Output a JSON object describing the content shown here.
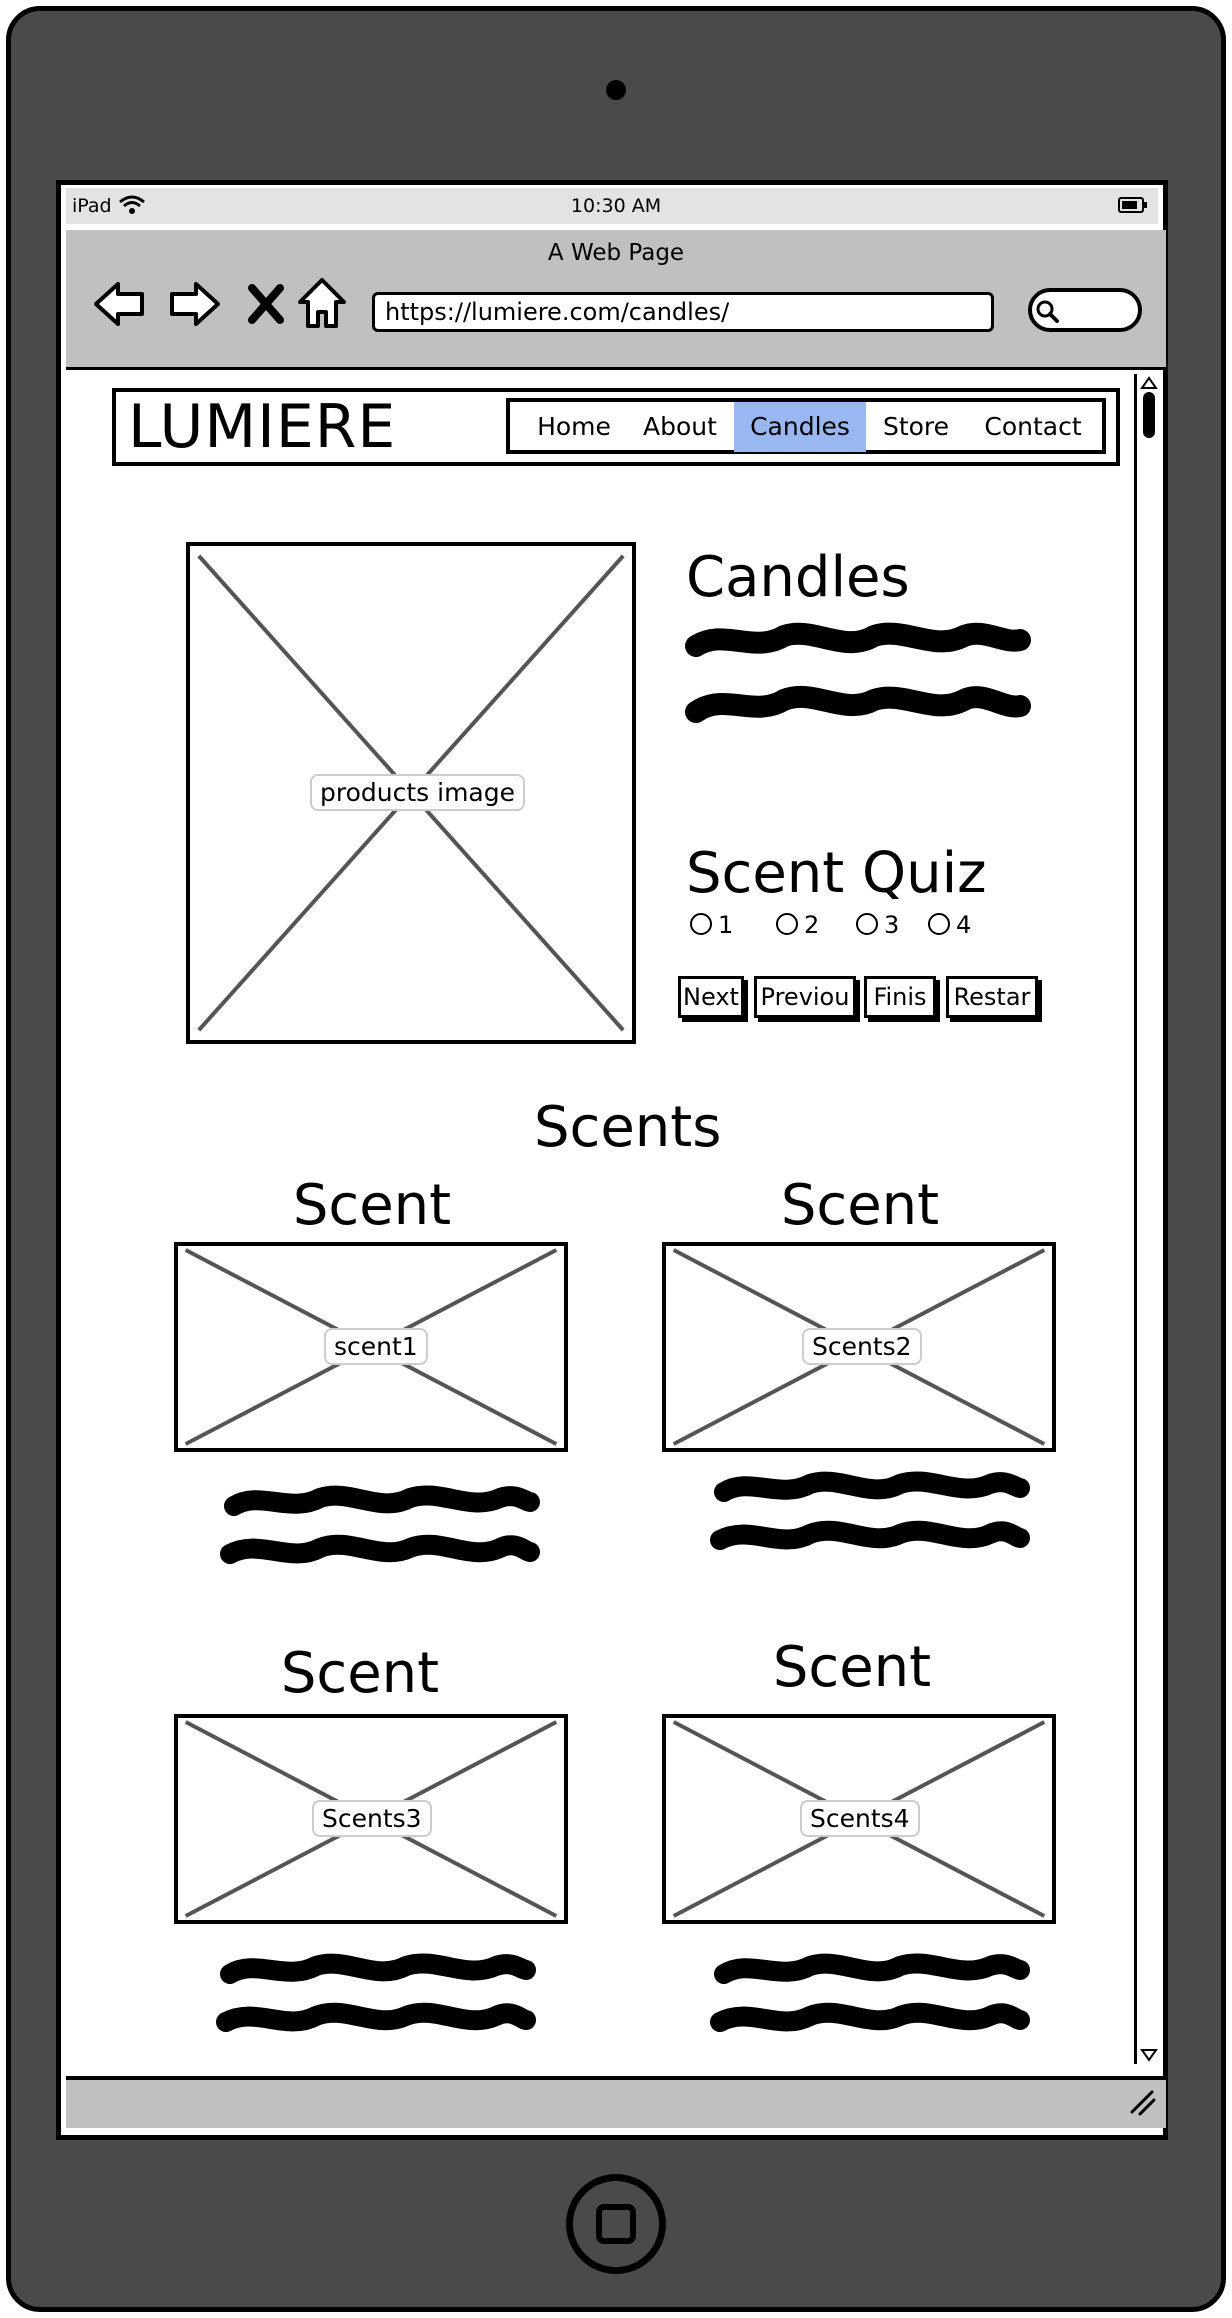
{
  "device": {
    "carrier": "iPad",
    "time": "10:30 AM"
  },
  "browser": {
    "page_title": "A Web Page",
    "url": "https://lumiere.com/candles/"
  },
  "site": {
    "logo": "LUMIERE",
    "nav": [
      "Home",
      "About",
      "Candles",
      "Store",
      "Contact"
    ],
    "active_nav": "Candles"
  },
  "hero": {
    "image_label": "products image",
    "title": "Candles"
  },
  "quiz": {
    "title": "Scent Quiz",
    "options": [
      "1",
      "2",
      "3",
      "4"
    ],
    "buttons": [
      "Next",
      "Previou",
      "Finis",
      "Restar"
    ]
  },
  "scents": {
    "section_title": "Scents",
    "items": [
      {
        "title": "Scent",
        "image_label": "scent1"
      },
      {
        "title": "Scent",
        "image_label": "Scents2"
      },
      {
        "title": "Scent",
        "image_label": "Scents3"
      },
      {
        "title": "Scent",
        "image_label": "Scents4"
      }
    ]
  },
  "icons": [
    "wifi-icon",
    "battery-icon",
    "back-arrow-icon",
    "forward-arrow-icon",
    "close-icon",
    "home-icon",
    "search-icon",
    "resize-grip-icon"
  ]
}
